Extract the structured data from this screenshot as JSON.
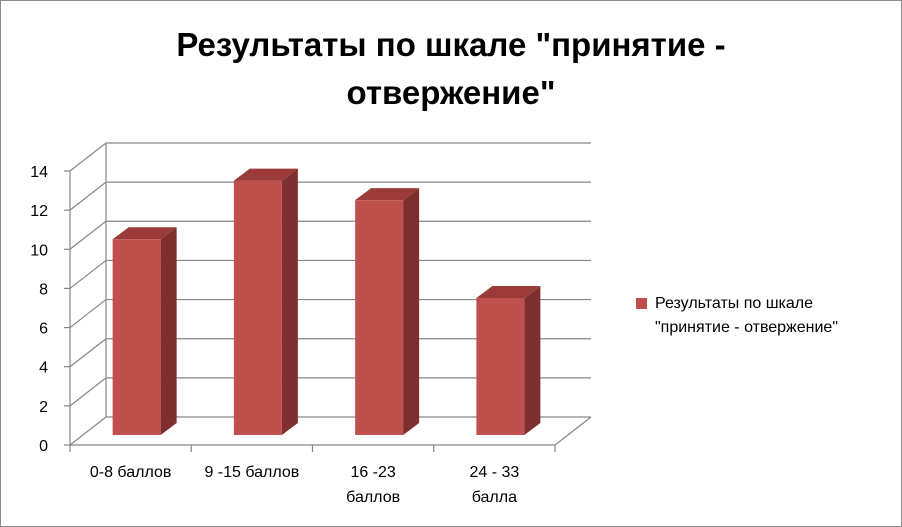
{
  "chart_data": {
    "type": "bar",
    "title_lines": [
      "Результаты по шкале \"принятие -",
      "отвержение\""
    ],
    "categories": [
      [
        "0-8 баллов"
      ],
      [
        "9 -15 баллов"
      ],
      [
        "16 -23",
        "баллов"
      ],
      [
        "24 - 33",
        "балла"
      ]
    ],
    "series": [
      {
        "name": "Результаты по шкале \"принятие - отвержение\"",
        "legend_lines": [
          "Результаты по шкале",
          "\"принятие - отвержение\""
        ],
        "values": [
          10,
          13,
          12,
          7
        ],
        "color": "#c0504d"
      }
    ],
    "yticks": [
      "0",
      "2",
      "4",
      "6",
      "8",
      "10",
      "12",
      "14"
    ],
    "ylim": [
      0,
      14
    ],
    "grid": true,
    "three_d": true,
    "legend_position": "right"
  }
}
